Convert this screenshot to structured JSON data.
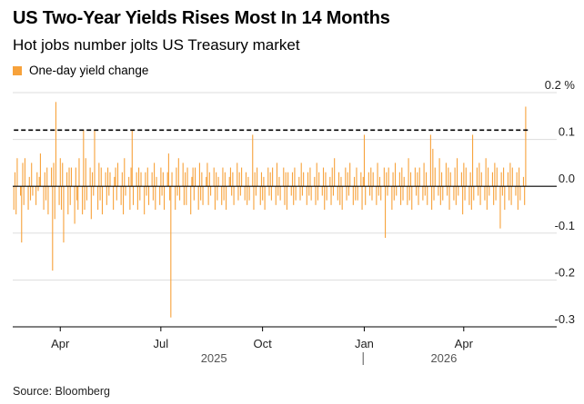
{
  "title": "US Two-Year Yields Rises Most In 14 Months",
  "subtitle": "Hot jobs number jolts US Treasury market",
  "source": "Source: Bloomberg",
  "colors": {
    "bars": "#f7a23b",
    "reference_line": "#000000",
    "grid": "#dddddd",
    "zero_line": "#000000"
  },
  "chart_data": {
    "type": "bar",
    "legend": [
      {
        "name": "One-day yield change",
        "color": "#f7a23b"
      }
    ],
    "legend_position": "top-left",
    "ylabel": "",
    "y_unit": "%",
    "ylim": [
      -0.3,
      0.2
    ],
    "y_ticks": [
      {
        "value": 0.2,
        "label": "0.2 %"
      },
      {
        "value": 0.1,
        "label": "0.1"
      },
      {
        "value": 0.0,
        "label": "0.0"
      },
      {
        "value": -0.1,
        "label": "-0.1"
      },
      {
        "value": -0.2,
        "label": "-0.2"
      },
      {
        "value": -0.3,
        "label": "-0.3"
      }
    ],
    "grid": true,
    "x_range": [
      "2025-02-17",
      "2026-06-06"
    ],
    "x_ticks": [
      {
        "date": "2025-04-01",
        "label": "Apr"
      },
      {
        "date": "2025-07-01",
        "label": "Jul"
      },
      {
        "date": "2025-10-01",
        "label": "Oct"
      },
      {
        "date": "2026-01-01",
        "label": "Jan"
      },
      {
        "date": "2026-04-01",
        "label": "Apr"
      }
    ],
    "x_years": [
      {
        "date": "2025-08-18",
        "label": "2025"
      },
      {
        "date": "2026-03-14",
        "label": "2026"
      }
    ],
    "year_divider": "2025-12-31",
    "reference_line": {
      "value": 0.12,
      "style": "dashed",
      "from": "2025-02-18",
      "to": "2026-05-30"
    },
    "series": [
      {
        "name": "One-day yield change",
        "start_date": "2025-02-18",
        "frequency": "business-day",
        "values": [
          -0.05,
          0.03,
          -0.06,
          0.06,
          -0.02,
          -0.12,
          0.05,
          -0.04,
          0.06,
          -0.05,
          0.02,
          -0.03,
          0.05,
          -0.02,
          -0.04,
          0.03,
          -0.01,
          0.02,
          0.07,
          -0.05,
          0.03,
          -0.03,
          0.04,
          -0.06,
          0.04,
          -0.18,
          0.05,
          -0.07,
          0.18,
          -0.04,
          0.06,
          -0.05,
          0.05,
          -0.12,
          0.03,
          -0.06,
          0.04,
          -0.04,
          0.04,
          -0.08,
          0.04,
          -0.03,
          -0.05,
          0.06,
          -0.06,
          0.12,
          -0.05,
          0.06,
          -0.03,
          0.04,
          -0.07,
          0.03,
          -0.02,
          0.12,
          -0.05,
          0.05,
          -0.03,
          0.04,
          -0.06,
          0.03,
          -0.04,
          0.04,
          -0.02,
          0.03,
          -0.05,
          0.02,
          0.04,
          -0.03,
          0.05,
          -0.04,
          0.03,
          -0.06,
          0.06,
          -0.02,
          0.02,
          -0.05,
          0.04,
          0.12,
          -0.04,
          0.03,
          -0.05,
          0.04,
          -0.03,
          0.03,
          -0.06,
          0.03,
          -0.02,
          0.04,
          -0.04,
          0.03,
          -0.03,
          0.05,
          -0.05,
          0.02,
          -0.04,
          0.04,
          -0.02,
          0.03,
          -0.05,
          0.03,
          0.07,
          -0.03,
          -0.28,
          0.03,
          -0.05,
          0.04,
          -0.02,
          0.06,
          -0.03,
          0.05,
          -0.04,
          0.03,
          -0.04,
          0.04,
          -0.06,
          0.02,
          0.04,
          -0.03,
          0.04,
          -0.05,
          0.05,
          -0.03,
          0.03,
          -0.04,
          0.02,
          0.05,
          -0.04,
          0.03,
          -0.02,
          0.04,
          -0.05,
          0.03,
          -0.03,
          0.02,
          -0.04,
          0.04,
          -0.03,
          0.03,
          -0.05,
          0.02,
          0.04,
          -0.02,
          0.03,
          -0.04,
          0.05,
          -0.03,
          0.03,
          -0.02,
          0.04,
          -0.03,
          0.03,
          -0.04,
          0.02,
          -0.03,
          0.11,
          -0.05,
          0.03,
          -0.02,
          0.04,
          -0.04,
          0.03,
          -0.03,
          0.02,
          -0.05,
          0.04,
          -0.02,
          0.03,
          -0.03,
          0.04,
          -0.04,
          0.05,
          -0.02,
          0.02,
          -0.03,
          0.04,
          -0.04,
          0.03,
          -0.05,
          0.03,
          -0.02,
          0.03,
          -0.04,
          0.04,
          -0.03,
          0.02,
          -0.03,
          0.05,
          -0.02,
          0.03,
          -0.04,
          0.03,
          -0.02,
          0.04,
          -0.03,
          0.02,
          -0.04,
          0.05,
          -0.03,
          0.03,
          -0.02,
          0.04,
          -0.05,
          0.03,
          -0.03,
          0.02,
          -0.04,
          0.04,
          -0.02,
          0.06,
          -0.03,
          0.03,
          -0.04,
          0.02,
          -0.05,
          0.04,
          -0.03,
          0.03,
          -0.02,
          0.05,
          -0.04,
          0.02,
          -0.03,
          0.04,
          -0.03,
          0.03,
          -0.05,
          0.02,
          0.11,
          -0.04,
          0.03,
          -0.02,
          0.04,
          -0.03,
          0.03,
          -0.04,
          0.05,
          -0.02,
          0.02,
          -0.03,
          0.04,
          -0.11,
          0.03,
          -0.02,
          0.04,
          -0.05,
          0.03,
          -0.03,
          0.05,
          -0.02,
          0.03,
          -0.04,
          0.04,
          -0.03,
          0.02,
          -0.04,
          0.06,
          -0.03,
          0.03,
          -0.05,
          0.04,
          -0.02,
          0.03,
          -0.04,
          0.04,
          -0.03,
          0.05,
          -0.02,
          0.03,
          -0.04,
          0.11,
          -0.05,
          0.08,
          -0.03,
          0.04,
          -0.02,
          0.06,
          -0.04,
          0.03,
          -0.03,
          0.05,
          -0.02,
          0.04,
          -0.05,
          0.03,
          -0.03,
          0.04,
          -0.04,
          0.06,
          -0.02,
          0.03,
          -0.06,
          0.05,
          -0.03,
          0.04,
          -0.04,
          0.03,
          -0.05,
          0.11,
          -0.03,
          0.04,
          -0.02,
          0.05,
          -0.04,
          0.03,
          -0.03,
          0.06,
          -0.05,
          0.04,
          -0.02,
          0.03,
          -0.04,
          0.05,
          -0.03,
          0.04,
          -0.09,
          0.03,
          -0.02,
          0.04,
          -0.05,
          0.03,
          -0.03,
          0.05,
          -0.04,
          0.04,
          -0.02,
          0.03,
          -0.05,
          0.04,
          -0.03,
          0.02,
          -0.04,
          0.17
        ]
      }
    ]
  }
}
